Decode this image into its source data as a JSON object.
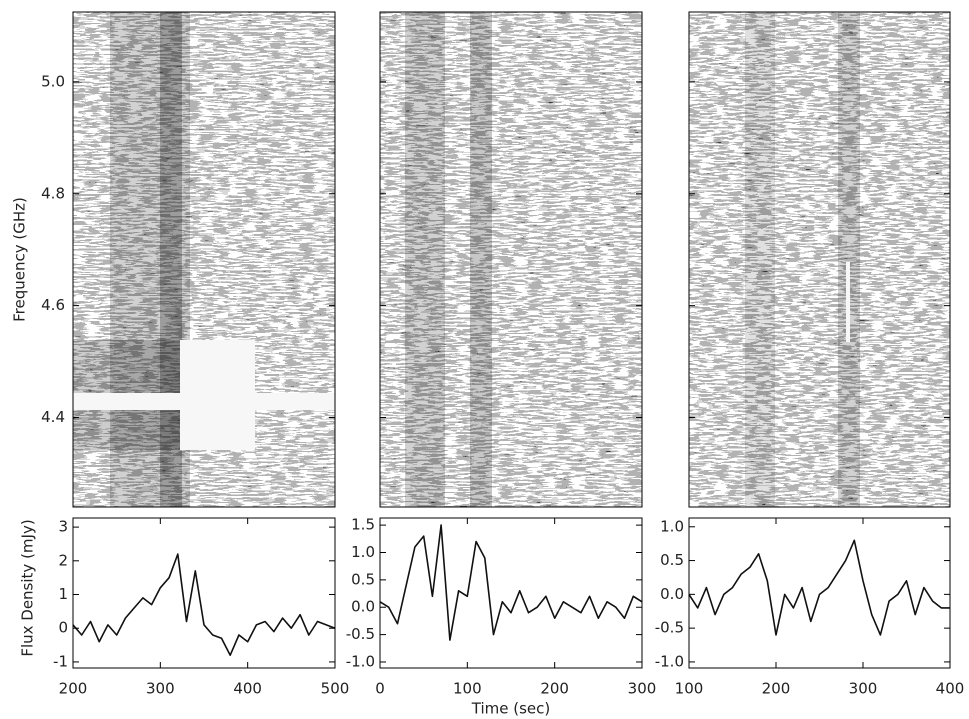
{
  "chart_data": [
    {
      "type": "spectrogram",
      "ylabel": "Frequency (GHz)",
      "ylim": [
        4.24,
        5.125
      ],
      "yticks": [
        4.4,
        4.6,
        4.8,
        {
          "value": 5,
          "label": "5.0"
        }
      ]
    },
    {
      "type": "spectrogram"
    },
    {
      "type": "spectrogram"
    },
    {
      "type": "line",
      "ylabel": "Flux Density (mJy)",
      "color": "#111111",
      "x": [
        200,
        210,
        220,
        230,
        240,
        250,
        260,
        270,
        280,
        290,
        300,
        310,
        320,
        330,
        340,
        350,
        360,
        370,
        380,
        390,
        400,
        410,
        420,
        430,
        440,
        450,
        460,
        470,
        480,
        490,
        500
      ],
      "values": [
        0.1,
        -0.2,
        0.2,
        -0.4,
        0.1,
        -0.2,
        0.3,
        0.6,
        0.9,
        0.7,
        1.2,
        1.5,
        2.2,
        0.2,
        1.7,
        0.1,
        -0.2,
        -0.3,
        -0.8,
        -0.2,
        -0.4,
        0.1,
        0.2,
        -0.1,
        0.3,
        0.0,
        0.4,
        -0.2,
        0.2,
        0.1,
        0.0
      ],
      "xlim": [
        200,
        500
      ],
      "xticks": [
        200,
        300,
        400,
        500
      ],
      "ylim": [
        -1.18,
        3.27
      ],
      "yticks": [
        -1,
        0,
        1,
        2,
        3
      ]
    },
    {
      "type": "line",
      "xlabel": "Time (sec)",
      "color": "#111111",
      "x": [
        0,
        10,
        20,
        30,
        40,
        50,
        60,
        70,
        80,
        90,
        100,
        110,
        120,
        130,
        140,
        150,
        160,
        170,
        180,
        190,
        200,
        210,
        220,
        230,
        240,
        250,
        260,
        270,
        280,
        290,
        300
      ],
      "values": [
        0.1,
        0.0,
        -0.3,
        0.4,
        1.1,
        1.3,
        0.2,
        1.5,
        -0.6,
        0.3,
        0.2,
        1.2,
        0.9,
        -0.5,
        0.1,
        -0.1,
        0.3,
        -0.1,
        0.0,
        0.2,
        -0.2,
        0.1,
        0.0,
        -0.1,
        0.2,
        -0.2,
        0.1,
        0.0,
        -0.2,
        0.2,
        0.1
      ],
      "xlim": [
        0,
        300
      ],
      "xticks": [
        0,
        100,
        200,
        300
      ],
      "ylim": [
        -1.11,
        1.63
      ],
      "yticks": [
        {
          "value": -1,
          "label": "-1.0"
        },
        -0.5,
        {
          "value": 0,
          "label": "0.0"
        },
        0.5,
        {
          "value": 1,
          "label": "1.0"
        },
        1.5
      ]
    },
    {
      "type": "line",
      "color": "#111111",
      "x": [
        100,
        110,
        120,
        130,
        140,
        150,
        160,
        170,
        180,
        190,
        200,
        210,
        220,
        230,
        240,
        250,
        260,
        270,
        280,
        290,
        300,
        310,
        320,
        330,
        340,
        350,
        360,
        370,
        380,
        390,
        400
      ],
      "values": [
        0.0,
        -0.2,
        0.1,
        -0.3,
        0.0,
        0.1,
        0.3,
        0.4,
        0.6,
        0.2,
        -0.6,
        0.0,
        -0.2,
        0.1,
        -0.4,
        0.0,
        0.1,
        0.3,
        0.5,
        0.8,
        0.2,
        -0.3,
        -0.6,
        -0.1,
        0.0,
        0.2,
        -0.3,
        0.1,
        -0.1,
        -0.2,
        -0.2
      ],
      "xlim": [
        100,
        400
      ],
      "xticks": [
        100,
        200,
        300,
        400
      ],
      "ylim": [
        -1.09,
        1.13
      ],
      "yticks": [
        {
          "value": -1,
          "label": "-1.0"
        },
        -0.5,
        {
          "value": 0,
          "label": "0.0"
        },
        0.5,
        {
          "value": 1,
          "label": "1.0"
        }
      ]
    }
  ]
}
